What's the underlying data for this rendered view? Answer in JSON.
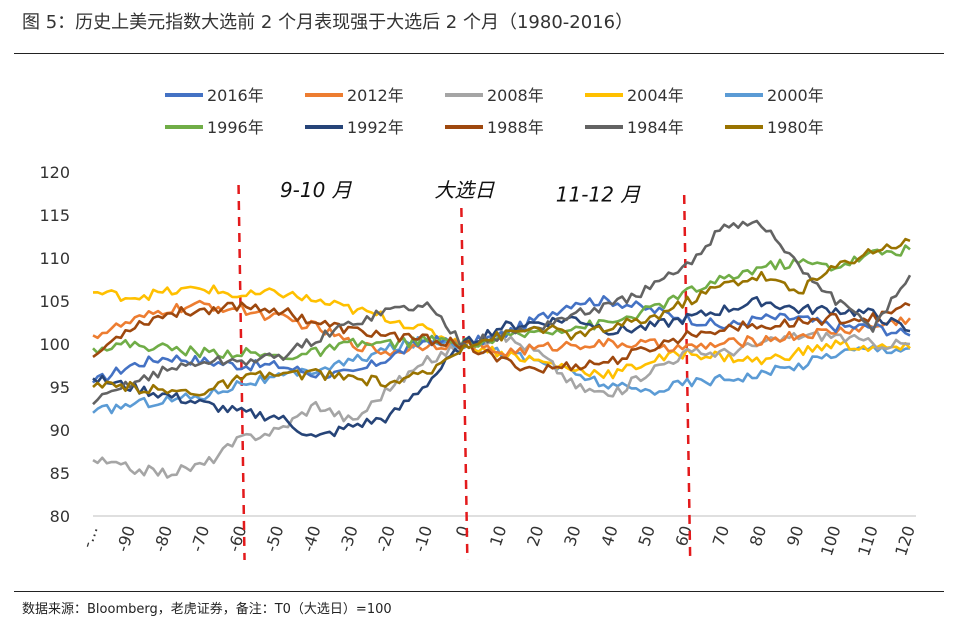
{
  "title": "图 5：历史上美元指数大选前 2 个月表现强于大选后 2 个月（1980-2016）",
  "source": "数据来源：Bloomberg，老虎证券，备注：T0（大选日）=100",
  "chart_data": {
    "type": "line",
    "title": "",
    "xlabel": "",
    "ylabel": "",
    "xlim": [
      -100,
      120
    ],
    "ylim": [
      80,
      120
    ],
    "grid": false,
    "legend_position": "top",
    "x_ticks": [
      "-…",
      "-90",
      "-80",
      "-70",
      "-60",
      "-50",
      "-40",
      "-30",
      "-20",
      "-10",
      "0",
      "10",
      "20",
      "30",
      "40",
      "50",
      "60",
      "70",
      "80",
      "90",
      "100",
      "110",
      "120"
    ],
    "y_ticks": [
      "80",
      "85",
      "90",
      "95",
      "100",
      "105",
      "110",
      "115",
      "120"
    ],
    "vlines": [
      -60,
      0,
      60
    ],
    "annotations": [
      {
        "text": "9-10 月",
        "x": -40,
        "y": 118
      },
      {
        "text": "大选日",
        "x": 0,
        "y": 118
      },
      {
        "text": "11-12 月",
        "x": 36,
        "y": 117.5
      }
    ],
    "x": [
      -100,
      -90,
      -80,
      -70,
      -60,
      -50,
      -40,
      -30,
      -20,
      -10,
      0,
      10,
      20,
      30,
      40,
      50,
      60,
      70,
      80,
      90,
      100,
      110,
      120
    ],
    "series": [
      {
        "name": "2016年",
        "color": "#4472c4",
        "values": [
          95.5,
          97.5,
          98.5,
          98,
          97.5,
          97.5,
          96.5,
          96.5,
          98.5,
          100.5,
          100,
          101,
          103,
          105,
          105,
          104,
          103,
          102,
          103,
          103,
          102,
          102,
          101
        ]
      },
      {
        "name": "2012年",
        "color": "#ed7d31",
        "values": [
          101,
          102.5,
          104,
          104.5,
          104,
          103,
          102,
          100,
          99,
          100,
          100,
          99,
          99.5,
          100,
          100,
          100,
          99.5,
          100,
          100.5,
          101,
          101.5,
          102,
          103
        ]
      },
      {
        "name": "2008年",
        "color": "#a5a5a5",
        "values": [
          86.5,
          85.5,
          85,
          86,
          89,
          90,
          93,
          91,
          95,
          98,
          100,
          101,
          99,
          95,
          94,
          97,
          99,
          99,
          100,
          101,
          101,
          100,
          100
        ]
      },
      {
        "name": "2004年",
        "color": "#ffc000",
        "values": [
          106,
          105.5,
          106,
          106.5,
          105.5,
          106,
          105,
          104,
          103,
          101.5,
          100,
          99,
          98,
          97,
          96.5,
          98,
          99,
          98.5,
          98,
          99,
          100,
          99.5,
          99.5
        ]
      },
      {
        "name": "2000年",
        "color": "#5b9bd5",
        "values": [
          92,
          93,
          93.5,
          94,
          95.5,
          96,
          97,
          98,
          99.5,
          100.5,
          100,
          99,
          98,
          96.5,
          95,
          94.5,
          95.5,
          96,
          96.5,
          97.5,
          99,
          99.5,
          99.5
        ]
      },
      {
        "name": "1996年",
        "color": "#70ad47",
        "values": [
          99.5,
          100,
          99.5,
          99,
          99,
          98.5,
          99,
          100,
          100,
          100.5,
          100,
          100.5,
          101.5,
          102,
          102.5,
          104,
          106,
          107.5,
          109,
          109.5,
          109,
          110.5,
          111
        ]
      },
      {
        "name": "1992年",
        "color": "#264478",
        "values": [
          96,
          95,
          94,
          93,
          92,
          91.5,
          89,
          90.5,
          91.5,
          95.5,
          100,
          102,
          102.5,
          103,
          101.5,
          102,
          103,
          104,
          105,
          104,
          104,
          103.5,
          101.5
        ]
      },
      {
        "name": "1988年",
        "color": "#9e480e",
        "values": [
          98.5,
          102,
          103.5,
          104,
          104.5,
          104,
          102.5,
          101.5,
          101,
          100.5,
          100,
          98,
          97,
          97.5,
          98,
          99.5,
          101,
          102,
          102,
          102.5,
          103,
          103,
          104.5
        ]
      },
      {
        "name": "1984年",
        "color": "#636363",
        "values": [
          93,
          95.5,
          97,
          98,
          98,
          98.5,
          100.5,
          102.5,
          104,
          104.5,
          100,
          101,
          102,
          103.5,
          104.5,
          106.5,
          109,
          114,
          114,
          109,
          105,
          102,
          108
        ]
      },
      {
        "name": "1980年",
        "color": "#997300",
        "values": [
          95,
          95,
          94.5,
          94.5,
          96,
          96.5,
          96.5,
          96,
          95.5,
          96.5,
          100,
          101,
          102,
          101,
          102,
          103,
          105,
          107,
          108,
          106,
          109,
          111,
          112
        ]
      }
    ]
  }
}
